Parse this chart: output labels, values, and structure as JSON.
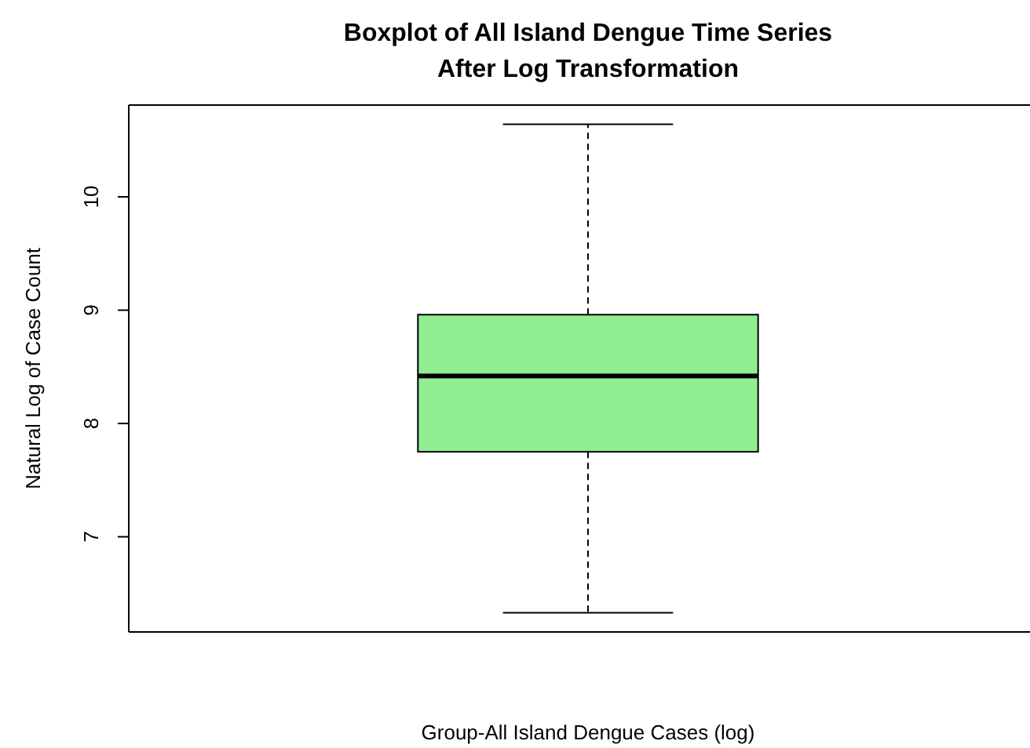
{
  "chart_data": {
    "type": "box",
    "title": "Boxplot of All Island Dengue Time Series\nAfter Log Transformation",
    "xlabel": "Group-All Island Dengue Cases (log)",
    "ylabel": "Natural Log of Case Count",
    "categories": [
      null
    ],
    "boxes": [
      {
        "low": 6.33,
        "q1": 7.75,
        "median": 8.42,
        "q3": 8.96,
        "high": 10.64
      }
    ],
    "color": "#90ee90",
    "line_style": "dashed",
    "ylim": [
      6.16,
      10.81
    ],
    "yticks": [
      7,
      8,
      9,
      10
    ]
  }
}
